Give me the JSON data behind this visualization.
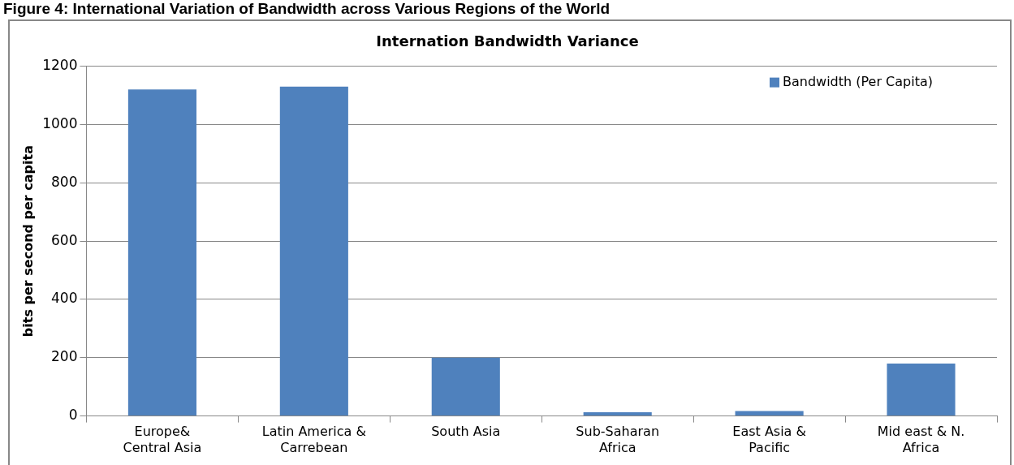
{
  "chart_data": {
    "type": "bar",
    "title": "Internation Bandwidth Variance",
    "ylabel": "bits per second per capita",
    "annotations": [
      "Figure 4: International Variation of Bandwidth across Various Regions of the World"
    ],
    "categories": [
      [
        "Europe&",
        "Central Asia"
      ],
      [
        "Latin America &",
        "Carrebean"
      ],
      [
        "South Asia"
      ],
      [
        "Sub-Saharan",
        "Africa"
      ],
      [
        "East Asia &",
        "Pacific"
      ],
      [
        "Mid east & N.",
        "Africa"
      ]
    ],
    "series": [
      {
        "name": "Bandwidth (Per Capita)",
        "color": "#4f81bd",
        "values": [
          1120,
          1130,
          200,
          13,
          17,
          180
        ]
      }
    ],
    "ylim": [
      0,
      1200
    ],
    "yticks": [
      0,
      200,
      400,
      600,
      800,
      1000,
      1200
    ],
    "grid": "y",
    "legend": "top right"
  }
}
